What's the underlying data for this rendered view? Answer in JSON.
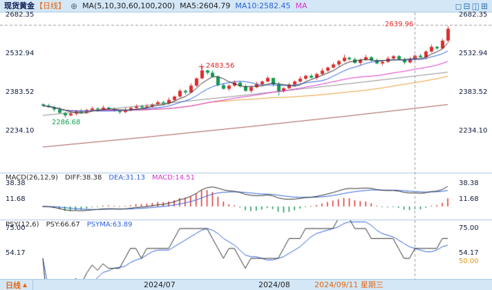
{
  "header": {
    "title": "现货黄金",
    "period": "【日线】",
    "settings_icon": "⊕",
    "ma_params": "MA(5,10,30,60,100,200)",
    "ma5": "MA5:2604.79",
    "ma10": "MA10:2582.45",
    "ma30_truncated": "MA",
    "view_icons": [
      "◻",
      "⊟",
      "◫",
      "⊞"
    ]
  },
  "axes": {
    "main": [
      "2682.35",
      "2532.94",
      "2383.52",
      "2234.10"
    ],
    "macd": [
      "38.38",
      "11.68"
    ],
    "psy": [
      "75.00",
      "54.17"
    ],
    "psy_extra": "50.00"
  },
  "annotations": {
    "highest": "2639.96",
    "july_peak": "2483.56",
    "lowest": "2286.68"
  },
  "macd_header": {
    "params": "MACD(26,12,9)",
    "diff": "DIFF:38.38",
    "dea": "DEA:31.13",
    "macd": "MACD:14.51"
  },
  "psy_header": {
    "params": "PSY(12,6)",
    "psy": "PSY:66.67",
    "psyma": "PSYMA:63.89"
  },
  "footer": {
    "period": "日线",
    "arrow": "▲",
    "dates": [
      "2024/07",
      "2024/08"
    ],
    "highlight_date": "2024/09/11 星期三"
  },
  "colors": {
    "header_bg": "#d3e7f7",
    "frame": "#8fb8d8",
    "separator": "#a9c7e0",
    "up": "#dd2e2e",
    "down": "#149a52",
    "ma5": "#2a2a2a",
    "ma10": "#2b5fd9",
    "ma30": "#dd30cc",
    "ma60": "#e79a2e",
    "ma100": "#8c8c8c",
    "ma200": "#a2564d",
    "diff": "#2a2a2a",
    "dea": "#2b5fd9",
    "hist_pos": "#dd2e2e",
    "hist_neg": "#149a52",
    "psy": "#2a2a2a",
    "psyma": "#2b5fd9",
    "annotation_red": "#e02222",
    "annotation_green": "#11a04d",
    "accent_orange": "#e8650d",
    "axis_text": "#0d1b3e",
    "dashed": "#999999"
  },
  "chart_data": {
    "type": "candlestick",
    "title": "现货黄金 日线 (Spot Gold, Daily)",
    "panels": [
      {
        "name": "price",
        "y_ticks": [
          2682.35,
          2532.94,
          2383.52,
          2234.1
        ],
        "overlays": [
          "MA5",
          "MA10",
          "MA30",
          "MA60",
          "MA100",
          "MA200"
        ]
      },
      {
        "name": "MACD",
        "params": "26,12,9",
        "y_ticks": [
          38.38,
          11.68
        ],
        "last": {
          "diff": 38.38,
          "dea": 31.13,
          "macd": 14.51
        }
      },
      {
        "name": "PSY",
        "params": "12,6",
        "y_ticks": [
          75.0,
          54.17,
          50.0
        ],
        "last": {
          "psy": 66.67,
          "psyma": 63.89
        }
      }
    ],
    "x_axis_labels": [
      "2024/07",
      "2024/08",
      "2024/09/11 星期三"
    ],
    "annotations": {
      "highest": 2639.96,
      "july_peak": 2483.56,
      "lowest": 2286.68
    },
    "ma_last": {
      "ma5": 2604.79,
      "ma10": 2582.45
    },
    "y_axis_main": [
      2682.35,
      2532.94,
      2383.52,
      2234.1
    ],
    "current_price_line": 2645,
    "crosshair_index": 68,
    "ma_long_estimates": {
      "ma100": {
        "start": 2295,
        "end": 2462
      },
      "ma200": {
        "start": 2173,
        "end": 2337
      }
    },
    "candles": {
      "open": [
        2338,
        2333,
        2327,
        2318,
        2305,
        2295,
        2302,
        2311,
        2306,
        2316,
        2322,
        2318,
        2325,
        2319,
        2312,
        2308,
        2316,
        2324,
        2331,
        2326,
        2330,
        2338,
        2346,
        2341,
        2355,
        2368,
        2390,
        2384,
        2410,
        2438,
        2469,
        2460,
        2445,
        2412,
        2398,
        2410,
        2422,
        2408,
        2390,
        2404,
        2416,
        2426,
        2440,
        2415,
        2388,
        2400,
        2414,
        2426,
        2437,
        2448,
        2441,
        2455,
        2468,
        2480,
        2492,
        2505,
        2518,
        2512,
        2498,
        2510,
        2520,
        2508,
        2496,
        2502,
        2515,
        2524,
        2512,
        2500,
        2512,
        2526,
        2520,
        2542,
        2560,
        2554,
        2584
      ],
      "high": [
        2342,
        2340,
        2332,
        2327,
        2309,
        2309,
        2316,
        2320,
        2320,
        2329,
        2327,
        2334,
        2329,
        2326,
        2317,
        2325,
        2328,
        2338,
        2336,
        2339,
        2342,
        2353,
        2351,
        2364,
        2372,
        2397,
        2395,
        2419,
        2442,
        2483.56,
        2474,
        2469,
        2449,
        2419,
        2415,
        2431,
        2426,
        2415,
        2409,
        2425,
        2430,
        2447,
        2431,
        2424,
        2404,
        2421,
        2431,
        2446,
        2452,
        2455,
        2460,
        2477,
        2484,
        2499,
        2510,
        2530,
        2522,
        2519,
        2515,
        2529,
        2524,
        2515,
        2507,
        2524,
        2528,
        2528,
        2517,
        2521,
        2530,
        2533,
        2547,
        2569,
        2564,
        2591,
        2639.96
      ],
      "low": [
        2328,
        2324,
        2310,
        2301,
        2286.68,
        2292,
        2294,
        2302,
        2301,
        2313,
        2310,
        2314,
        2314,
        2309,
        2300,
        2304,
        2311,
        2321,
        2318,
        2322,
        2325,
        2335,
        2333,
        2337,
        2350,
        2365,
        2376,
        2380,
        2405,
        2435,
        2452,
        2441,
        2407,
        2395,
        2390,
        2406,
        2403,
        2387,
        2382,
        2400,
        2411,
        2423,
        2407,
        2372,
        2383,
        2397,
        2406,
        2422,
        2432,
        2438,
        2433,
        2451,
        2463,
        2477,
        2484,
        2501,
        2507,
        2495,
        2490,
        2506,
        2503,
        2493,
        2488,
        2498,
        2510,
        2509,
        2492,
        2496,
        2507,
        2517,
        2512,
        2538,
        2549,
        2551,
        2576
      ],
      "close": [
        2333,
        2327,
        2318,
        2305,
        2295,
        2302,
        2311,
        2306,
        2316,
        2322,
        2318,
        2325,
        2319,
        2312,
        2308,
        2316,
        2324,
        2331,
        2326,
        2330,
        2338,
        2346,
        2341,
        2355,
        2368,
        2390,
        2384,
        2410,
        2438,
        2469,
        2460,
        2445,
        2412,
        2398,
        2410,
        2422,
        2408,
        2390,
        2404,
        2416,
        2426,
        2440,
        2415,
        2388,
        2400,
        2414,
        2426,
        2437,
        2448,
        2441,
        2455,
        2468,
        2480,
        2492,
        2505,
        2518,
        2512,
        2498,
        2510,
        2520,
        2508,
        2496,
        2502,
        2515,
        2524,
        2512,
        2500,
        2512,
        2526,
        2520,
        2542,
        2560,
        2554,
        2584,
        2630
      ]
    }
  }
}
